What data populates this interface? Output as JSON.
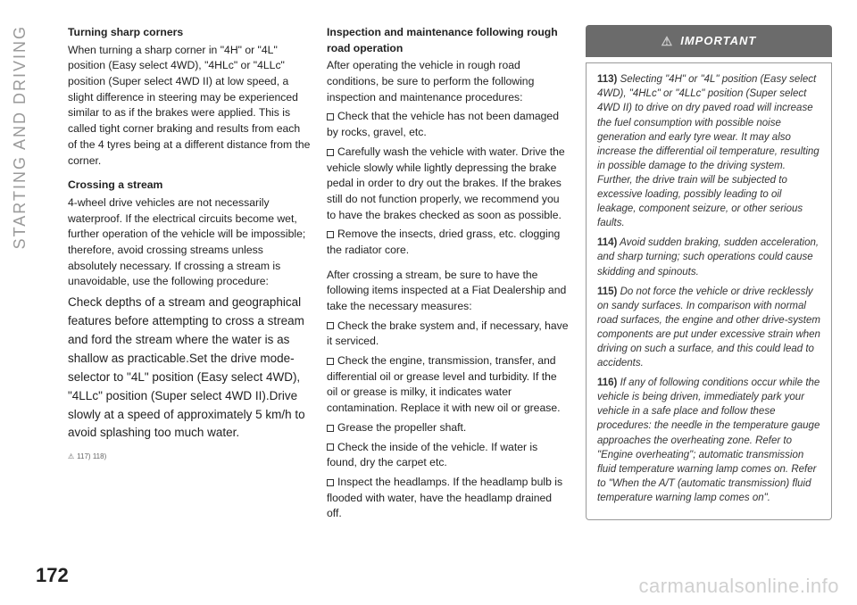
{
  "side_label": "STARTING AND DRIVING",
  "page_number": "172",
  "watermark": "carmanualsonline.info",
  "col1": {
    "h1": "Turning sharp corners",
    "p1": "When turning a sharp corner in \"4H\" or \"4L\" position (Easy select 4WD), \"4HLc\" or \"4LLc\" position (Super select 4WD II) at low speed, a slight difference in steering may be experienced similar to as if the brakes were applied. This is called tight corner braking and results from each of the 4 tyres being at a different distance from the corner.",
    "h2": "Crossing a stream",
    "p2": "4-wheel drive vehicles are not necessarily waterproof. If the electrical circuits become wet, further operation of the vehicle will be impossible; therefore, avoid crossing streams unless absolutely necessary. If crossing a stream is unavoidable, use the following procedure:",
    "p3": "Check depths of a stream and geographical features before attempting to cross a stream and ford the stream where the water is as shallow as practicable.Set the drive mode-selector to \"4L\" position (Easy select 4WD), \"4LLc\" position (Super select 4WD II).Drive slowly at a speed of approximately 5 km/h to avoid splashing too much water.",
    "warn": "117) 118)"
  },
  "col2": {
    "h1": "Inspection and maintenance following rough road operation",
    "p1": "After operating the vehicle in rough road conditions, be sure to perform the following inspection and maintenance procedures:",
    "c1": "Check that the vehicle has not been damaged by rocks, gravel, etc.",
    "c2": "Carefully wash the vehicle with water. Drive the vehicle slowly while lightly depressing the brake pedal in order to dry out the brakes. If the brakes still do not function properly, we recommend you to have the brakes checked as soon as possible.",
    "c3": "Remove the insects, dried grass, etc. clogging the radiator core.",
    "p2": "After crossing a stream, be sure to have the following items inspected at a Fiat Dealership and take the necessary measures:",
    "c4": "Check the brake system and, if necessary, have it serviced.",
    "c5": "Check the engine, transmission, transfer, and differential oil or grease level and turbidity. If the oil or grease is milky, it indicates water contamination. Replace it with new oil or grease.",
    "c6": "Grease the propeller shaft.",
    "c7": "Check the inside of the vehicle. If water is found, dry the carpet etc.",
    "c8": "Inspect the headlamps. If the headlamp bulb is flooded with water, have the headlamp drained off."
  },
  "col3": {
    "important_label": "IMPORTANT",
    "n113_num": "113)",
    "n113": " Selecting \"4H\" or \"4L\" position (Easy select 4WD), \"4HLc\" or \"4LLc\" position (Super select 4WD II) to drive on dry paved road will increase the fuel consumption with possible noise generation and early tyre wear. It may also increase the differential oil temperature, resulting in possible damage to the driving system. Further, the drive train will be subjected to excessive loading, possibly leading to oil leakage, component seizure, or other serious faults.",
    "n114_num": "114)",
    "n114": " Avoid sudden braking, sudden acceleration, and sharp turning; such operations could cause skidding and spinouts.",
    "n115_num": "115)",
    "n115": " Do not force the vehicle or drive recklessly on sandy surfaces. In comparison with normal road surfaces, the engine and other drive-system components are put under excessive strain when driving on such a surface, and this could lead to accidents.",
    "n116_num": "116)",
    "n116": " If any of following conditions occur while the vehicle is being driven, immediately park your vehicle in a safe place and follow these procedures: the needle in the temperature gauge approaches the overheating zone. Refer to \"Engine overheating\"; automatic transmission fluid temperature warning lamp comes on. Refer to \"When the A/T (automatic transmission) fluid temperature warning lamp comes on\"."
  }
}
